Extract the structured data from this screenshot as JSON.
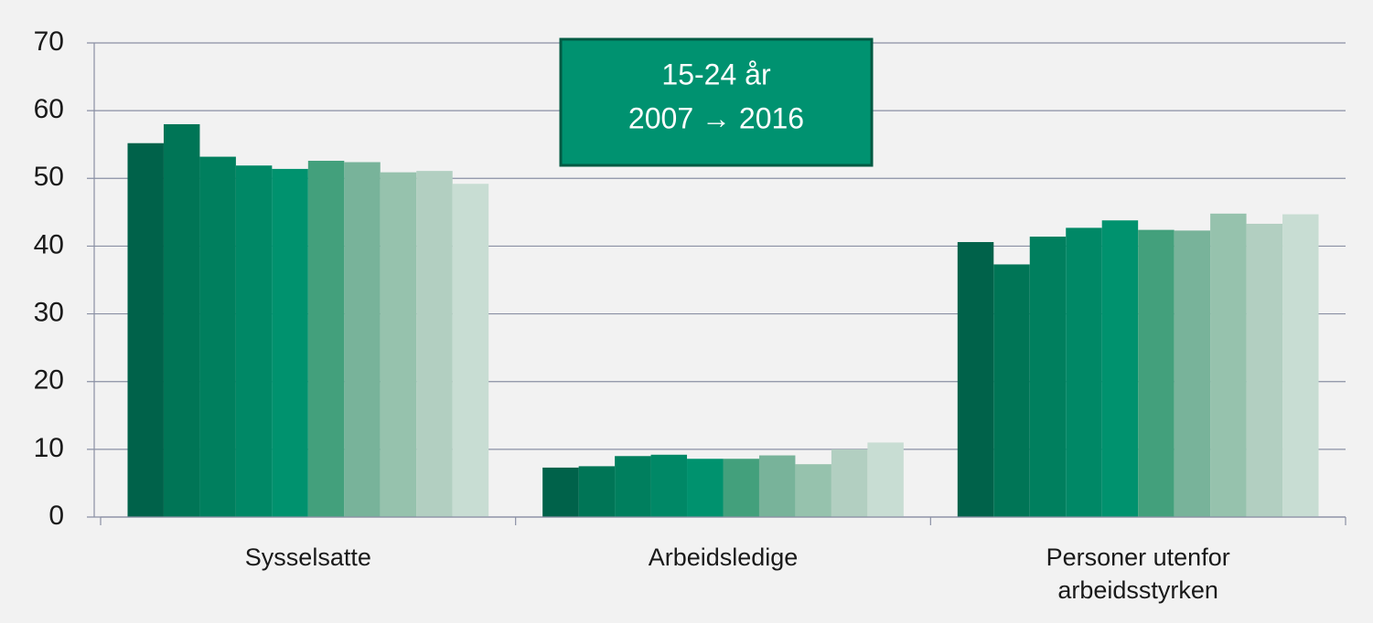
{
  "chart_data": {
    "type": "bar",
    "categories": [
      "Sysselsatte",
      "Arbeidsledige",
      "Personer utenfor arbeidsstyrken"
    ],
    "series": [
      {
        "color": "#00624a",
        "values": [
          55.2,
          7.3,
          40.6
        ]
      },
      {
        "color": "#007556",
        "values": [
          58.0,
          7.5,
          37.3
        ]
      },
      {
        "color": "#007f5e",
        "values": [
          53.2,
          9.0,
          41.4
        ]
      },
      {
        "color": "#008866",
        "values": [
          51.9,
          9.2,
          42.7
        ]
      },
      {
        "color": "#00926e",
        "values": [
          51.4,
          8.6,
          43.8
        ]
      },
      {
        "color": "#43a07c",
        "values": [
          52.6,
          8.6,
          42.4
        ]
      },
      {
        "color": "#78b39a",
        "values": [
          52.4,
          9.1,
          42.3
        ]
      },
      {
        "color": "#96c2ad",
        "values": [
          50.9,
          7.8,
          44.8
        ]
      },
      {
        "color": "#b2cfc1",
        "values": [
          51.1,
          10.0,
          43.3
        ]
      },
      {
        "color": "#c8ddd3",
        "values": [
          49.2,
          11.0,
          44.7
        ]
      }
    ],
    "annotation": [
      "15-24 år",
      "2007 → 2016"
    ],
    "ylim": [
      0,
      70
    ],
    "yticks": [
      0,
      10,
      20,
      30,
      40,
      50,
      60,
      70
    ],
    "grid": true
  }
}
